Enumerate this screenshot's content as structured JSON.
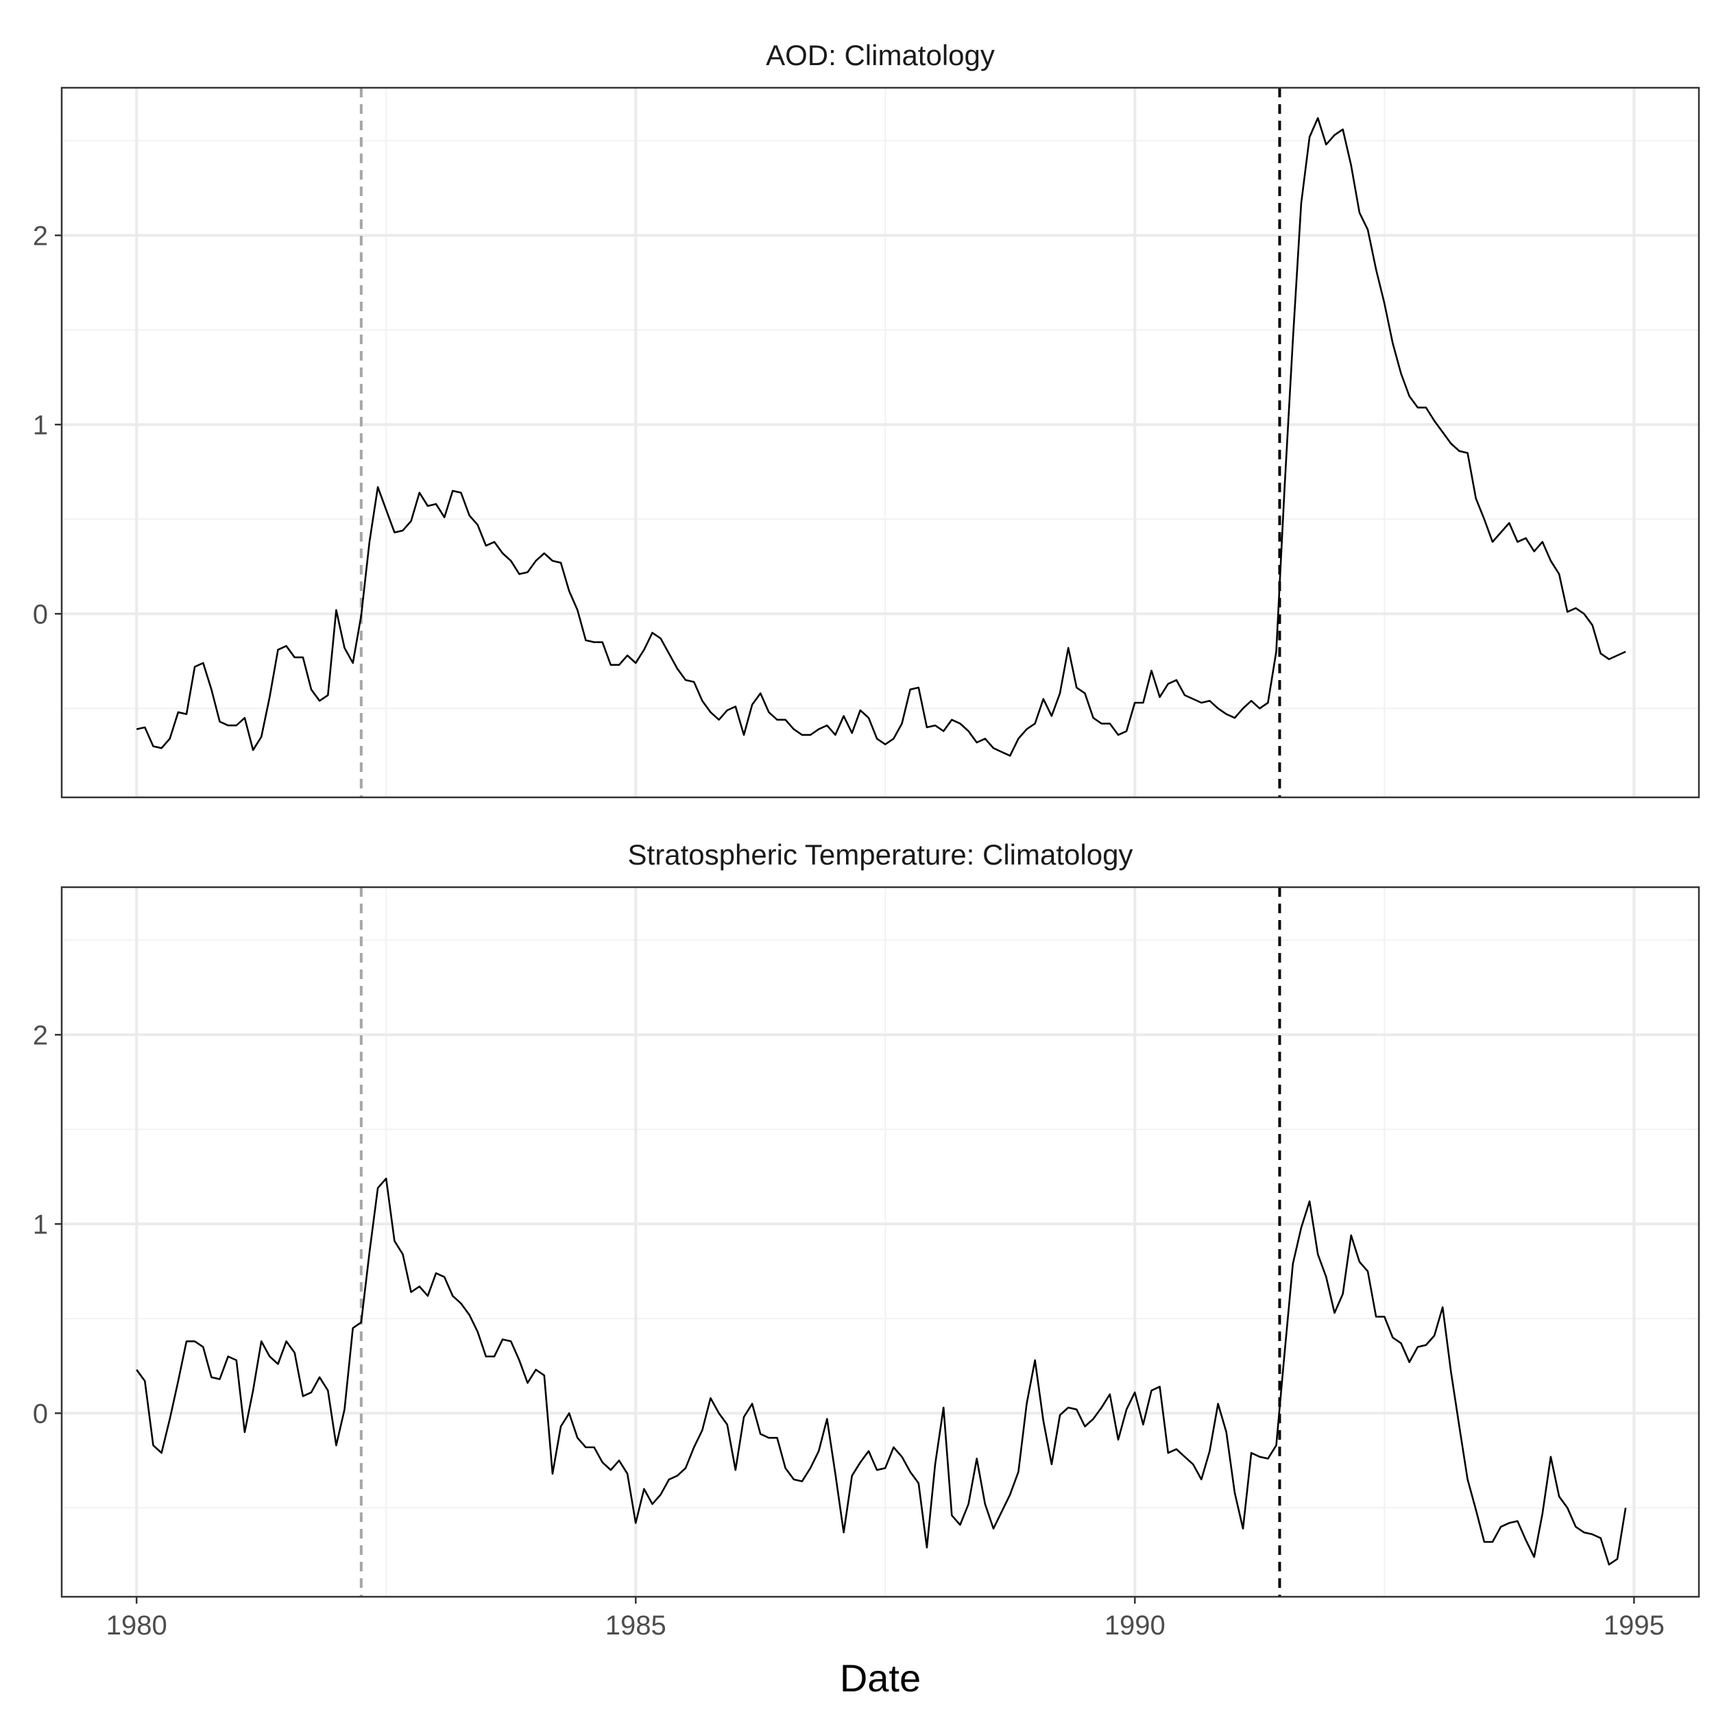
{
  "chart_data": {
    "type": "line",
    "xlabel": "Date",
    "x_ticks": [
      1980,
      1985,
      1990,
      1995
    ],
    "x_tick_labels": [
      "1980",
      "1985",
      "1990",
      "1995"
    ],
    "xlim": [
      1979.25,
      1995.65
    ],
    "ylim": [
      -0.97,
      2.78
    ],
    "y_ticks": [
      0,
      1,
      2
    ],
    "y_tick_labels": [
      "0",
      "1",
      "2"
    ],
    "grid": true,
    "legend": "none",
    "colors": {
      "line": "#000000",
      "major_grid": "#ebebeb",
      "minor_grid": "#f2f2f2",
      "panel_border": "#333333",
      "event_el_chichon": "#a6a6a6",
      "event_pinatubo": "#000000"
    },
    "event_lines": [
      {
        "x": 1982.25,
        "style": "dashed",
        "color": "#a6a6a6"
      },
      {
        "x": 1991.45,
        "style": "dashed",
        "color": "#000000"
      }
    ],
    "x_start": 1980.0,
    "x_step": 0.08333,
    "panels": [
      {
        "title": "AOD: Climatology",
        "values": [
          -0.61,
          -0.6,
          -0.7,
          -0.71,
          -0.66,
          -0.52,
          -0.53,
          -0.28,
          -0.26,
          -0.4,
          -0.57,
          -0.59,
          -0.59,
          -0.55,
          -0.72,
          -0.65,
          -0.44,
          -0.19,
          -0.17,
          -0.23,
          -0.23,
          -0.4,
          -0.46,
          -0.43,
          0.02,
          -0.18,
          -0.26,
          -0.01,
          0.38,
          0.67,
          0.55,
          0.43,
          0.44,
          0.49,
          0.64,
          0.57,
          0.58,
          0.51,
          0.65,
          0.64,
          0.52,
          0.47,
          0.36,
          0.38,
          0.32,
          0.28,
          0.21,
          0.22,
          0.28,
          0.32,
          0.28,
          0.27,
          0.12,
          0.02,
          -0.14,
          -0.15,
          -0.15,
          -0.27,
          -0.27,
          -0.22,
          -0.26,
          -0.19,
          -0.1,
          -0.13,
          -0.21,
          -0.29,
          -0.35,
          -0.36,
          -0.46,
          -0.52,
          -0.56,
          -0.51,
          -0.49,
          -0.64,
          -0.48,
          -0.42,
          -0.52,
          -0.56,
          -0.56,
          -0.61,
          -0.64,
          -0.64,
          -0.61,
          -0.59,
          -0.64,
          -0.54,
          -0.63,
          -0.51,
          -0.55,
          -0.66,
          -0.69,
          -0.66,
          -0.58,
          -0.4,
          -0.39,
          -0.6,
          -0.59,
          -0.62,
          -0.56,
          -0.58,
          -0.62,
          -0.68,
          -0.66,
          -0.71,
          -0.73,
          -0.75,
          -0.66,
          -0.61,
          -0.58,
          -0.45,
          -0.54,
          -0.42,
          -0.18,
          -0.39,
          -0.42,
          -0.55,
          -0.58,
          -0.58,
          -0.64,
          -0.62,
          -0.47,
          -0.47,
          -0.3,
          -0.44,
          -0.37,
          -0.35,
          -0.43,
          -0.45,
          -0.47,
          -0.46,
          -0.5,
          -0.53,
          -0.55,
          -0.5,
          -0.46,
          -0.5,
          -0.47,
          -0.2,
          0.67,
          1.45,
          2.17,
          2.52,
          2.62,
          2.48,
          2.53,
          2.56,
          2.37,
          2.12,
          2.03,
          1.82,
          1.64,
          1.43,
          1.27,
          1.15,
          1.09,
          1.09,
          1.02,
          0.96,
          0.9,
          0.86,
          0.85,
          0.61,
          0.5,
          0.38,
          0.43,
          0.48,
          0.38,
          0.4,
          0.33,
          0.38,
          0.28,
          0.21,
          0.01,
          0.03,
          0.0,
          -0.06,
          -0.21,
          -0.24,
          -0.22,
          -0.2
        ]
      },
      {
        "title": "Stratospheric Temperature: Climatology",
        "values": [
          0.23,
          0.17,
          -0.17,
          -0.21,
          -0.03,
          0.17,
          0.38,
          0.38,
          0.35,
          0.19,
          0.18,
          0.3,
          0.28,
          -0.1,
          0.12,
          0.38,
          0.3,
          0.26,
          0.38,
          0.32,
          0.09,
          0.11,
          0.19,
          0.12,
          -0.17,
          0.02,
          0.45,
          0.48,
          0.85,
          1.19,
          1.24,
          0.91,
          0.84,
          0.64,
          0.67,
          0.62,
          0.74,
          0.72,
          0.62,
          0.58,
          0.52,
          0.43,
          0.3,
          0.3,
          0.39,
          0.38,
          0.28,
          0.16,
          0.23,
          0.2,
          -0.32,
          -0.07,
          0.0,
          -0.13,
          -0.18,
          -0.18,
          -0.26,
          -0.3,
          -0.25,
          -0.32,
          -0.58,
          -0.4,
          -0.48,
          -0.43,
          -0.35,
          -0.33,
          -0.29,
          -0.18,
          -0.09,
          0.08,
          0.0,
          -0.06,
          -0.3,
          -0.02,
          0.05,
          -0.11,
          -0.13,
          -0.13,
          -0.29,
          -0.35,
          -0.36,
          -0.29,
          -0.2,
          -0.03,
          -0.32,
          -0.63,
          -0.33,
          -0.26,
          -0.2,
          -0.3,
          -0.29,
          -0.18,
          -0.23,
          -0.31,
          -0.37,
          -0.71,
          -0.27,
          0.03,
          -0.54,
          -0.59,
          -0.48,
          -0.24,
          -0.48,
          -0.61,
          -0.52,
          -0.43,
          -0.31,
          0.05,
          0.28,
          -0.04,
          -0.27,
          -0.01,
          0.03,
          0.02,
          -0.07,
          -0.03,
          0.03,
          0.1,
          -0.14,
          0.02,
          0.11,
          -0.06,
          0.12,
          0.14,
          -0.21,
          -0.19,
          -0.23,
          -0.27,
          -0.35,
          -0.2,
          0.05,
          -0.1,
          -0.42,
          -0.61,
          -0.21,
          -0.23,
          -0.24,
          -0.17,
          0.32,
          0.79,
          0.98,
          1.12,
          0.84,
          0.72,
          0.53,
          0.63,
          0.94,
          0.8,
          0.75,
          0.51,
          0.51,
          0.4,
          0.37,
          0.27,
          0.35,
          0.36,
          0.41,
          0.56,
          0.22,
          -0.07,
          -0.35,
          -0.51,
          -0.68,
          -0.68,
          -0.6,
          -0.58,
          -0.57,
          -0.67,
          -0.76,
          -0.53,
          -0.23,
          -0.44,
          -0.5,
          -0.6,
          -0.63,
          -0.64,
          -0.66,
          -0.8,
          -0.77,
          -0.5
        ]
      }
    ]
  }
}
